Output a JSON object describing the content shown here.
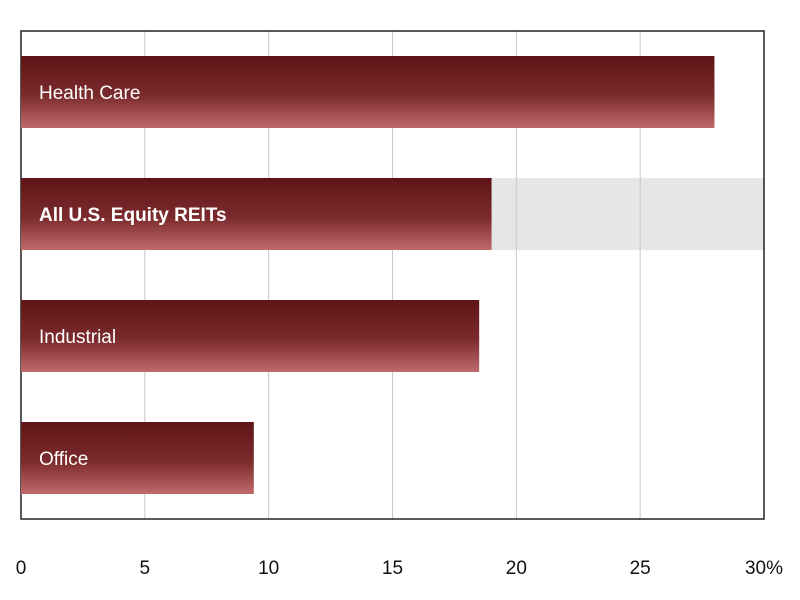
{
  "chart_data": {
    "type": "bar",
    "orientation": "horizontal",
    "categories": [
      "Health Care",
      "All U.S. Equity REITs",
      "Industrial",
      "Office"
    ],
    "values": [
      28,
      19,
      18.5,
      9.4
    ],
    "highlight_category": "All U.S. Equity REITs",
    "xlim": [
      0,
      30
    ],
    "xticks": [
      0,
      5,
      10,
      15,
      20,
      25,
      30
    ],
    "xtick_labels": [
      "0",
      "5",
      "10",
      "15",
      "20",
      "25",
      "30%"
    ],
    "title": "",
    "xlabel": "",
    "ylabel": "",
    "grid": "vertical",
    "colors": {
      "bar_dark": "#5e1416",
      "bar_light": "#c06a6c",
      "highlight_band": "#e5e6e8",
      "grid": "#c8c8c8",
      "frame": "#222222"
    }
  }
}
